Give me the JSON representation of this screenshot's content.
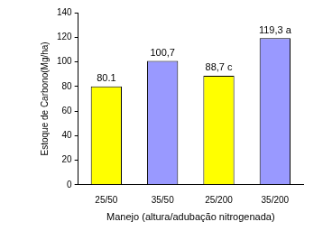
{
  "chart_data": {
    "type": "bar",
    "x_label": "Manejo (altura/adubação nitrogenada)",
    "y_label": "Estoque de Carbono(Mg/ha)",
    "categories": [
      "25/50",
      "35/50",
      "25/200",
      "35/200"
    ],
    "values": [
      80.1,
      100.7,
      88.7,
      119.3
    ],
    "value_labels": [
      "80.1",
      "100,7",
      "88,7 c",
      "119,3 a"
    ],
    "data_labels": true,
    "colors": [
      "#ffff00",
      "#9999ff",
      "#ffff00",
      "#9999ff"
    ],
    "ylim": [
      0,
      140
    ],
    "yticks": [
      0,
      20,
      40,
      60,
      80,
      100,
      120,
      140
    ],
    "grid": false
  }
}
